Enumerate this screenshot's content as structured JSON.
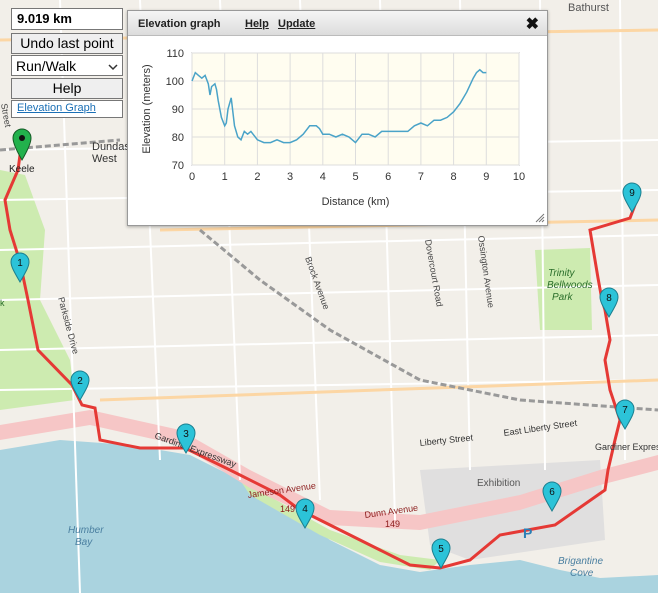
{
  "controls": {
    "distance": "9.019 km",
    "undo_label": "Undo last point",
    "mode_value": "Run/Walk",
    "help_label": "Help",
    "elevation_link": "Elevation Graph"
  },
  "elevation_panel": {
    "title": "Elevation graph",
    "help_link": "Help",
    "update_link": "Update",
    "close_glyph": "✖"
  },
  "chart_data": {
    "type": "line",
    "xlabel": "Distance (km)",
    "ylabel": "Elevation (meters)",
    "xlim": [
      0,
      10
    ],
    "ylim": [
      70,
      110
    ],
    "xticks": [
      0,
      1,
      2,
      3,
      4,
      5,
      6,
      7,
      8,
      9,
      10
    ],
    "yticks": [
      70,
      80,
      90,
      100,
      110
    ],
    "grid": true,
    "line_color": "#4aa3c8",
    "series": [
      {
        "x": [
          0,
          0.1,
          0.2,
          0.3,
          0.4,
          0.5,
          0.55,
          0.6,
          0.7,
          0.75,
          0.8,
          0.9,
          1.0,
          1.05,
          1.1,
          1.2,
          1.3,
          1.4,
          1.5,
          1.6,
          1.7,
          1.8,
          2.0,
          2.2,
          2.4,
          2.6,
          2.8,
          3.0,
          3.2,
          3.4,
          3.6,
          3.8,
          3.9,
          4.0,
          4.2,
          4.4,
          4.6,
          4.8,
          5.0,
          5.2,
          5.4,
          5.6,
          5.8,
          6.0,
          6.2,
          6.4,
          6.6,
          6.8,
          7.0,
          7.2,
          7.4,
          7.6,
          7.8,
          8.0,
          8.2,
          8.4,
          8.6,
          8.7,
          8.8,
          8.9,
          9.0
        ],
        "y": [
          100,
          103,
          102,
          101,
          102,
          99,
          95,
          98,
          99,
          97,
          93,
          87,
          84,
          85,
          90,
          94,
          84,
          80,
          79,
          82,
          81,
          82,
          79,
          78,
          78,
          79,
          78,
          78,
          79,
          81,
          84,
          84,
          83,
          81,
          81,
          80,
          81,
          80,
          78,
          81,
          81,
          80,
          82,
          82,
          82,
          82,
          82,
          84,
          85,
          84,
          86,
          86,
          87,
          89,
          92,
          96,
          101,
          103,
          104,
          103,
          103
        ]
      }
    ]
  },
  "route": {
    "line_color": "#e53935",
    "markers": [
      "1",
      "2",
      "3",
      "4",
      "5",
      "6",
      "7",
      "8",
      "9"
    ],
    "start_color": "#22b14c",
    "marker_color": "#2cc3d8"
  },
  "map_labels": {
    "station_1": "Dundas",
    "station_2": "West",
    "keele": "Keele",
    "bathurst": "Bathurst",
    "trinity_1": "Trinity",
    "trinity_2": "Bellwoods",
    "trinity_3": "Park",
    "brock": "Brock Avenue",
    "dovercourt": "Dovercourt Road",
    "ossington": "Ossington Avenue",
    "parkside": "Parkside Drive",
    "liberty": "Liberty Street",
    "east_liberty": "East Liberty Street",
    "gardiner_1": "Gardiner Expressway",
    "gardiner_2": "Gardiner Expres",
    "jameson": "Jameson Avenue",
    "route_149_a": "149",
    "route_149_b": "149",
    "dunn": "Dunn Avenue",
    "exhibition": "Exhibition",
    "humber_1": "Humber",
    "humber_2": "Bay",
    "brigantine_1": "Brigantine",
    "brigantine_2": "Cove",
    "parking": "P",
    "street_left": "Street",
    "park_k": "k"
  }
}
